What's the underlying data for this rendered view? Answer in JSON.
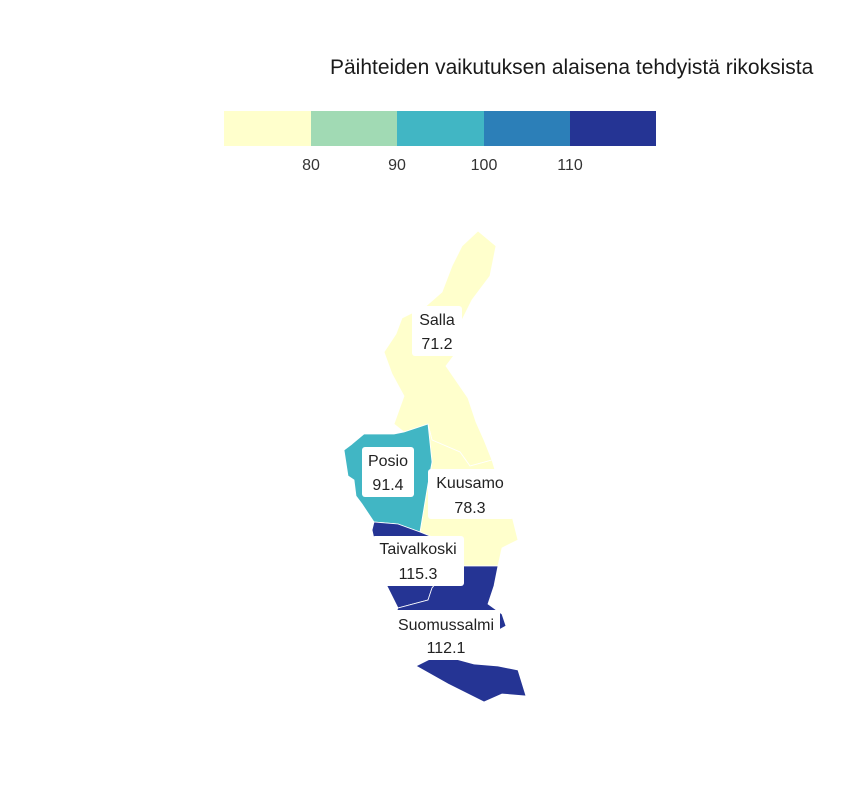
{
  "title": "Päihteiden vaikutuksen alaisena tehdyistä rikoksista",
  "legend": {
    "colors": [
      "#ffffcc",
      "#a1dab4",
      "#41b6c4",
      "#2c7fb8",
      "#253494"
    ],
    "ticks": [
      "80",
      "90",
      "100",
      "110"
    ]
  },
  "regions": [
    {
      "name": "Salla",
      "value": "71.2",
      "color": "#ffffcc"
    },
    {
      "name": "Posio",
      "value": "91.4",
      "color": "#41b6c4"
    },
    {
      "name": "Kuusamo",
      "value": "78.3",
      "color": "#ffffcc"
    },
    {
      "name": "Taivalkoski",
      "value": "115.3",
      "color": "#253494"
    },
    {
      "name": "Suomussalmi",
      "value": "112.1",
      "color": "#253494"
    }
  ]
}
